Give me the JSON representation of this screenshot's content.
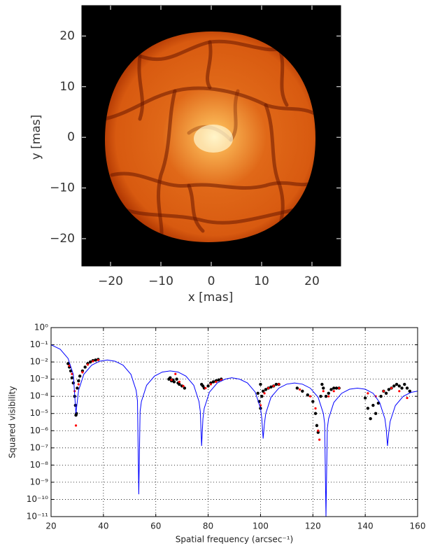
{
  "chart_data": [
    {
      "type": "image",
      "xlabel": "x [mas]",
      "ylabel": "y [mas]",
      "xlim": [
        -25.7,
        25.7
      ],
      "ylim": [
        -25.4,
        26
      ],
      "xticks": [
        {
          "value": -20,
          "label": "−20"
        },
        {
          "value": -10,
          "label": "−10"
        },
        0,
        10,
        20
      ],
      "yticks": [
        {
          "value": -20,
          "label": "−20"
        },
        {
          "value": -10,
          "label": "−10"
        },
        0,
        10,
        20
      ]
    },
    {
      "type": "scatter",
      "xlabel": "Spatial frequency (arcsec⁻¹)",
      "ylabel": "Squared visibility",
      "xlim": [
        20,
        160
      ],
      "ylim": [
        1e-11,
        1
      ],
      "log_y": true,
      "grid": true,
      "xticks": [
        20,
        40,
        60,
        80,
        100,
        120,
        140,
        160
      ],
      "yticks": [
        {
          "value": 1e-11,
          "label": "10⁻¹¹"
        },
        {
          "value": 1e-10,
          "label": "10⁻¹⁰"
        },
        {
          "value": 1e-09,
          "label": "10⁻⁹"
        },
        {
          "value": 1e-08,
          "label": "10⁻⁸"
        },
        {
          "value": 1e-07,
          "label": "10⁻⁷"
        },
        {
          "value": 1e-06,
          "label": "10⁻⁶"
        },
        {
          "value": 1e-05,
          "label": "10⁻⁵"
        },
        {
          "value": 0.0001,
          "label": "10⁻⁴"
        },
        {
          "value": 0.001,
          "label": "10⁻³"
        },
        {
          "value": 0.01,
          "label": "10⁻²"
        },
        {
          "value": 0.1,
          "label": "10⁻¹"
        },
        {
          "value": 1,
          "label": "10⁰"
        }
      ],
      "series": [
        {
          "kind": "scatter",
          "color": "#000000",
          "x": [
            26.5,
            27,
            27.5,
            28,
            28.5,
            29,
            29.3,
            29.5,
            29.7,
            30,
            30.5,
            31,
            32,
            33,
            34,
            35,
            36,
            37,
            38,
            65,
            65.5,
            66,
            66.5,
            67,
            68,
            68.5,
            69,
            70,
            71,
            77.5,
            78,
            78.5,
            80,
            81,
            82,
            83,
            84,
            85,
            99,
            99.5,
            100,
            100,
            100.5,
            101,
            102,
            103,
            104,
            105,
            106,
            107,
            114,
            116,
            118,
            120,
            121,
            121.5,
            122,
            123,
            123.5,
            124,
            125,
            126,
            127,
            128,
            129,
            130,
            140,
            141,
            142,
            143,
            144,
            145,
            146,
            147,
            148,
            149,
            150,
            151,
            152,
            153,
            154,
            155,
            156,
            157
          ],
          "values": [
            0.008,
            0.005,
            0.003,
            0.0012,
            0.0006,
            0.0001,
            3e-05,
            8e-06,
            1e-05,
            0.0003,
            0.0008,
            0.0015,
            0.003,
            0.005,
            0.008,
            0.01,
            0.012,
            0.013,
            0.014,
            0.001,
            0.0012,
            0.0008,
            0.0009,
            0.0007,
            0.001,
            0.0006,
            0.0005,
            0.0004,
            0.0003,
            0.0005,
            0.0004,
            0.0003,
            0.0004,
            0.0006,
            0.0007,
            0.0008,
            0.0009,
            0.001,
            0.00015,
            5e-05,
            2e-05,
            0.0005,
            0.0001,
            0.0002,
            0.00025,
            0.0003,
            0.00035,
            0.0004,
            0.0005,
            0.0005,
            0.0003,
            0.0002,
            0.00012,
            5e-05,
            1e-05,
            2e-06,
            8e-07,
            0.0001,
            0.0005,
            0.0003,
            0.0001,
            0.00015,
            0.00025,
            0.0003,
            0.0003,
            0.0003,
            8e-05,
            2e-05,
            5e-06,
            3e-05,
            1e-05,
            4e-05,
            0.0001,
            0.0002,
            0.00015,
            0.00025,
            0.0003,
            0.0004,
            0.0005,
            0.0004,
            0.0003,
            0.0005,
            0.0003,
            0.0002
          ]
        },
        {
          "kind": "scatter",
          "color": "#ff0000",
          "x": [
            27,
            28,
            29,
            29.5,
            30.5,
            32,
            34,
            36,
            38,
            66,
            67.5,
            69,
            70.5,
            79,
            81,
            83,
            85,
            100,
            101.5,
            103,
            105,
            107,
            115,
            119,
            121,
            122,
            122.5,
            124,
            126,
            128,
            130,
            141,
            144,
            147,
            150,
            153,
            156
          ],
          "values": [
            0.006,
            0.002,
            0.0002,
            2e-06,
            0.0005,
            0.0025,
            0.007,
            0.011,
            0.013,
            0.0009,
            0.002,
            0.0007,
            0.0004,
            0.0003,
            0.0005,
            0.0007,
            0.0009,
            3e-05,
            0.00015,
            0.0003,
            0.0004,
            0.0005,
            0.00025,
            0.0001,
            2e-05,
            1e-06,
            3e-07,
            0.0002,
            0.0001,
            0.0002,
            0.0003,
            0.00015,
            0.0001,
            0.0002,
            0.0003,
            0.0002,
            8e-05
          ]
        },
        {
          "kind": "line",
          "color": "#0000ff",
          "x": [
            20,
            23.5,
            26.5,
            28.5,
            29.5,
            30.5,
            32.5,
            35.5,
            38.5,
            41.5,
            44.5,
            47.5,
            50.5,
            52.5,
            53,
            53.5,
            54,
            54.5,
            56.5,
            59.5,
            62.5,
            65.5,
            68.5,
            71.5,
            74.5,
            76.5,
            77,
            77.5,
            78,
            78.5,
            80.5,
            83.5,
            86.5,
            89,
            92,
            95,
            98,
            100,
            100.5,
            101,
            101.5,
            102,
            104,
            107,
            110,
            113,
            116,
            119,
            122,
            124,
            124.5,
            125,
            125.5,
            126,
            128,
            131,
            134,
            137,
            140,
            143,
            145.5,
            147.5,
            148,
            148.5,
            149,
            149.5,
            151.5,
            154.5,
            157.5,
            160
          ],
          "values": [
            0.1,
            0.055,
            0.016,
            0.0019,
            1e-05,
            0.00022,
            0.0019,
            0.0065,
            0.011,
            0.013,
            0.011,
            0.0065,
            0.0019,
            0.00022,
            5.5e-05,
            2e-10,
            1.3e-05,
            5e-05,
            0.00044,
            0.0015,
            0.0026,
            0.003,
            0.0026,
            0.0015,
            0.00044,
            5e-05,
            1.3e-05,
            1.3e-07,
            5e-06,
            2e-05,
            0.000175,
            0.0006,
            0.001,
            0.0012,
            0.001,
            0.0006,
            0.000175,
            2e-05,
            5e-06,
            3.5e-07,
            2.6e-06,
            1e-05,
            8.8e-05,
            0.0003,
            0.00051,
            0.0006,
            0.00051,
            0.0003,
            8.8e-05,
            1e-05,
            2.6e-06,
            1e-11,
            1.3e-06,
            5e-06,
            4.4e-05,
            0.00015,
            0.00026,
            0.0003,
            0.00026,
            0.00015,
            4.4e-05,
            5e-06,
            1.3e-06,
            1.3e-07,
            8.6e-07,
            3.4e-06,
            2.9e-05,
            0.0001,
            0.00017,
            0.0002
          ]
        }
      ]
    }
  ]
}
